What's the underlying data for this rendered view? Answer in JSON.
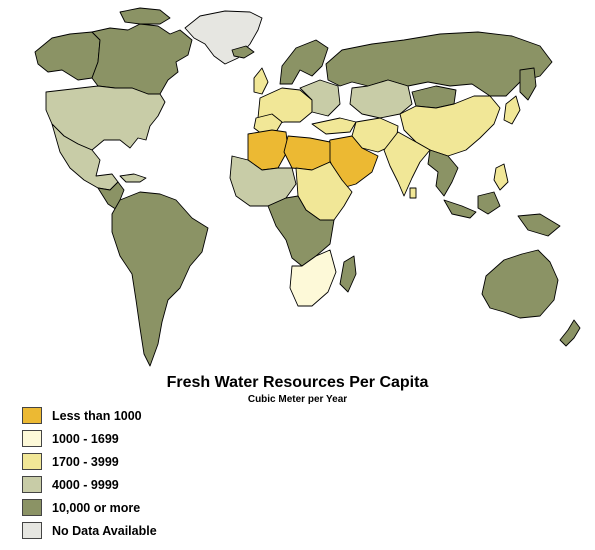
{
  "title": "Fresh Water Resources Per Capita",
  "subtitle": "Cubic Meter per Year",
  "colors": {
    "less_than_1000": "#ecb933",
    "r1000_1699": "#fdf9d8",
    "r1700_3999": "#f1e797",
    "r4000_9999": "#c8cca7",
    "r10000_plus": "#8b9365",
    "no_data": "#e6e6e1"
  },
  "legend": [
    {
      "label": "Less than 1000",
      "color": "#ecb933"
    },
    {
      "label": "1000 - 1699",
      "color": "#fdf9d8"
    },
    {
      "label": "1700 - 3999",
      "color": "#f1e797"
    },
    {
      "label": "4000 - 9999",
      "color": "#c8cca7"
    },
    {
      "label": "10,000 or more",
      "color": "#8b9365"
    },
    {
      "label": "No Data Available",
      "color": "#e6e6e1"
    }
  ]
}
